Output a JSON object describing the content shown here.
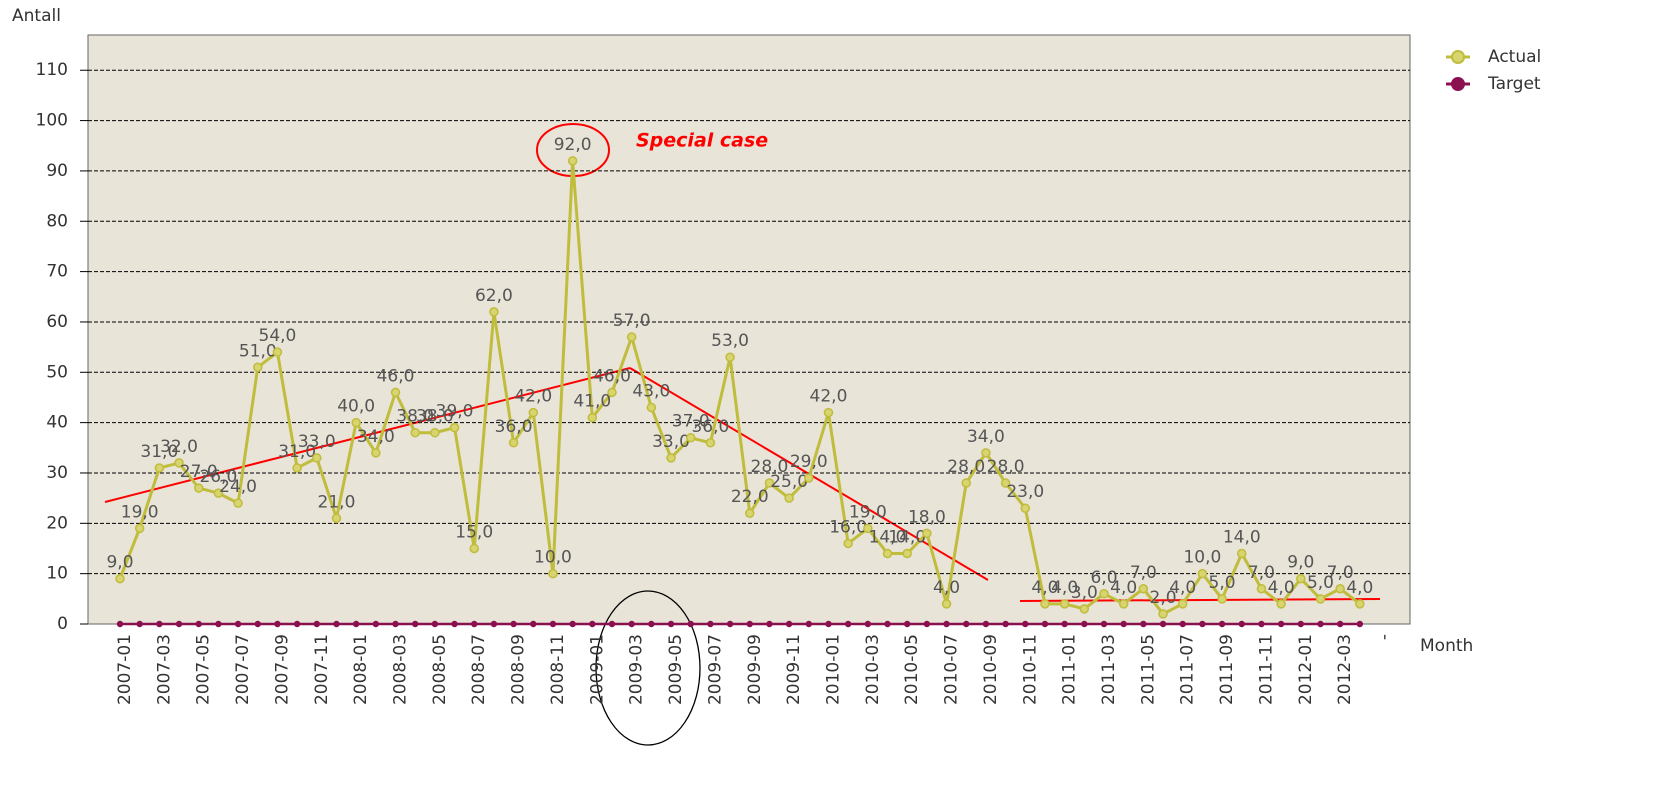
{
  "chart_data": {
    "type": "line",
    "y_label": "Antall",
    "x_label": "Month",
    "annotations": [
      "Special case"
    ],
    "categories": [
      "2007-01",
      null,
      "2007-03",
      null,
      "2007-05",
      null,
      "2007-07",
      null,
      "2007-09",
      null,
      "2007-11",
      null,
      "2008-01",
      null,
      "2008-03",
      null,
      "2008-05",
      null,
      "2008-07",
      null,
      "2008-09",
      null,
      "2008-11",
      null,
      "2009-01",
      null,
      "2009-03",
      null,
      "2009-05",
      null,
      "2009-07",
      null,
      "2009-09",
      null,
      "2009-11",
      null,
      "2010-01",
      null,
      "2010-03",
      null,
      "2010-05",
      null,
      "2010-07",
      null,
      "2010-09",
      null,
      "2010-11",
      null,
      "2011-01",
      null,
      "2011-03",
      null,
      "2011-05",
      null,
      "2011-07",
      null,
      "2011-09",
      null,
      "2011-11",
      null,
      "2012-01",
      null,
      "2012-03",
      null,
      "-"
    ],
    "series": [
      {
        "name": "Actual",
        "color": "#c0bc3c",
        "values": [
          9,
          19,
          31,
          32,
          27,
          26,
          24,
          51,
          54,
          31,
          33,
          21,
          40,
          34,
          46,
          38,
          38,
          39,
          15,
          62,
          36,
          42,
          10,
          92,
          41,
          46,
          57,
          43,
          33,
          37,
          36,
          53,
          22,
          28,
          25,
          29,
          42,
          16,
          19,
          14,
          14,
          18,
          4,
          28,
          34,
          28,
          23,
          4,
          4,
          3,
          6,
          4,
          7,
          2,
          4,
          10,
          5,
          14,
          7,
          4,
          9,
          5,
          7,
          4,
          null
        ],
        "value_labels": [
          "9,0",
          "19,0",
          "31,0",
          "32,0",
          "27,0",
          "26,0",
          "24,0",
          "51,0",
          "54,0",
          "31,0",
          "33,0",
          "21,0",
          "40,0",
          "34,0",
          "46,0",
          "38,0",
          "38,0",
          "39,0",
          "15,0",
          "62,0",
          "36,0",
          "42,0",
          "10,0",
          "92,0",
          "41,0",
          "46,0",
          "57,0",
          "43,0",
          "33,0",
          "37,0",
          "36,0",
          "53,0",
          "22,0",
          "28,0",
          "25,0",
          "29,0",
          "42,0",
          "16,0",
          "19,0",
          "14,0",
          "14,0",
          "18,0",
          "4,0",
          "28,0",
          "34,0",
          "28,0",
          "23,0",
          "4,0",
          "4,0",
          "3,0",
          "6,0",
          "4,0",
          "7,0",
          "2,0",
          "4,0",
          "10,0",
          "5,0",
          "14,0",
          "7,0",
          "4,0",
          "9,0",
          "5,0",
          "7,0",
          "4,0",
          null
        ]
      },
      {
        "name": "Target",
        "color": "#8a1050",
        "values": [
          0,
          0,
          0,
          0,
          0,
          0,
          0,
          0,
          0,
          0,
          0,
          0,
          0,
          0,
          0,
          0,
          0,
          0,
          0,
          0,
          0,
          0,
          0,
          0,
          0,
          0,
          0,
          0,
          0,
          0,
          0,
          0,
          0,
          0,
          0,
          0,
          0,
          0,
          0,
          0,
          0,
          0,
          0,
          0,
          0,
          0,
          0,
          0,
          0,
          0,
          0,
          0,
          0,
          0,
          0,
          0,
          0,
          0,
          0,
          0,
          0,
          0,
          0,
          0,
          null
        ]
      }
    ],
    "ylim": [
      0,
      117
    ],
    "yticks": [
      0,
      10,
      20,
      30,
      40,
      50,
      60,
      70,
      80,
      90,
      100,
      110
    ],
    "grid": true,
    "legend": "right"
  }
}
